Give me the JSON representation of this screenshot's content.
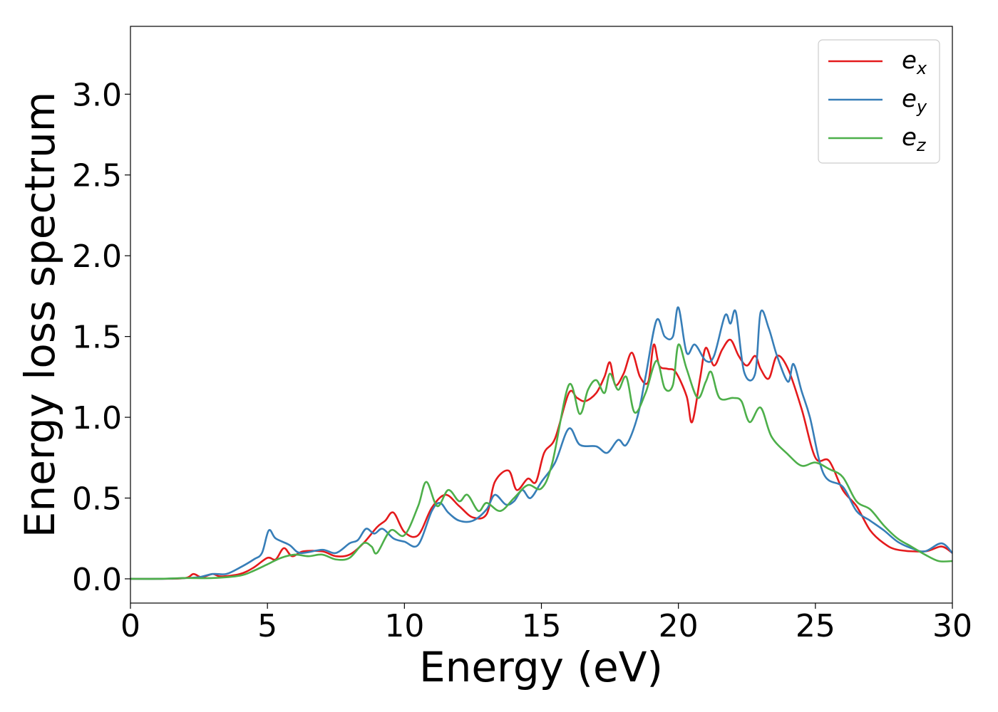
{
  "chart_data": {
    "type": "line",
    "title": "",
    "xlabel": "Energy (eV)",
    "ylabel": "Energy loss spectrum",
    "xlim": [
      0,
      30
    ],
    "ylim": [
      -0.15,
      3.42
    ],
    "xticks": [
      0,
      5,
      10,
      15,
      20,
      25,
      30
    ],
    "xtick_labels": [
      "0",
      "5",
      "10",
      "15",
      "20",
      "25",
      "30"
    ],
    "yticks": [
      0.0,
      0.5,
      1.0,
      1.5,
      2.0,
      2.5,
      3.0
    ],
    "ytick_labels": [
      "0.0",
      "0.5",
      "1.0",
      "1.5",
      "2.0",
      "2.5",
      "3.0"
    ],
    "grid": false,
    "legend_position": "top-right",
    "series": [
      {
        "name": "e_x",
        "legend_base": "e",
        "legend_sub": "x",
        "color": "#e41a1c",
        "points": [
          [
            0,
            0
          ],
          [
            1,
            0
          ],
          [
            2,
            0.005
          ],
          [
            2.3,
            0.03
          ],
          [
            2.6,
            0.01
          ],
          [
            3,
            0.03
          ],
          [
            3.3,
            0.015
          ],
          [
            4,
            0.03
          ],
          [
            4.5,
            0.07
          ],
          [
            5,
            0.13
          ],
          [
            5.3,
            0.12
          ],
          [
            5.6,
            0.19
          ],
          [
            5.9,
            0.14
          ],
          [
            6.3,
            0.17
          ],
          [
            7,
            0.17
          ],
          [
            7.5,
            0.14
          ],
          [
            8,
            0.15
          ],
          [
            8.5,
            0.22
          ],
          [
            9,
            0.32
          ],
          [
            9.3,
            0.36
          ],
          [
            9.6,
            0.41
          ],
          [
            10,
            0.29
          ],
          [
            10.5,
            0.27
          ],
          [
            11,
            0.44
          ],
          [
            11.5,
            0.52
          ],
          [
            12,
            0.45
          ],
          [
            12.5,
            0.38
          ],
          [
            13,
            0.4
          ],
          [
            13.3,
            0.6
          ],
          [
            13.8,
            0.67
          ],
          [
            14.1,
            0.55
          ],
          [
            14.5,
            0.62
          ],
          [
            14.8,
            0.6
          ],
          [
            15.1,
            0.78
          ],
          [
            15.5,
            0.87
          ],
          [
            16,
            1.15
          ],
          [
            16.3,
            1.12
          ],
          [
            16.6,
            1.1
          ],
          [
            17,
            1.15
          ],
          [
            17.3,
            1.25
          ],
          [
            17.5,
            1.34
          ],
          [
            17.7,
            1.2
          ],
          [
            18,
            1.27
          ],
          [
            18.3,
            1.4
          ],
          [
            18.6,
            1.25
          ],
          [
            18.9,
            1.22
          ],
          [
            19.1,
            1.45
          ],
          [
            19.3,
            1.32
          ],
          [
            19.6,
            1.3
          ],
          [
            19.9,
            1.28
          ],
          [
            20.3,
            1.13
          ],
          [
            20.5,
            0.97
          ],
          [
            20.8,
            1.25
          ],
          [
            21,
            1.43
          ],
          [
            21.3,
            1.32
          ],
          [
            21.6,
            1.42
          ],
          [
            21.9,
            1.48
          ],
          [
            22.2,
            1.38
          ],
          [
            22.5,
            1.32
          ],
          [
            22.8,
            1.38
          ],
          [
            23,
            1.3
          ],
          [
            23.3,
            1.24
          ],
          [
            23.6,
            1.38
          ],
          [
            24,
            1.3
          ],
          [
            24.5,
            1.05
          ],
          [
            25,
            0.75
          ],
          [
            25.5,
            0.73
          ],
          [
            26,
            0.55
          ],
          [
            26.5,
            0.45
          ],
          [
            27,
            0.3
          ],
          [
            27.5,
            0.22
          ],
          [
            28,
            0.18
          ],
          [
            29,
            0.17
          ],
          [
            29.6,
            0.2
          ],
          [
            30,
            0.16
          ]
        ]
      },
      {
        "name": "e_y",
        "legend_base": "e",
        "legend_sub": "y",
        "color": "#377eb8",
        "points": [
          [
            0,
            0
          ],
          [
            1,
            0
          ],
          [
            2,
            0.005
          ],
          [
            2.5,
            0.01
          ],
          [
            3,
            0.03
          ],
          [
            3.5,
            0.03
          ],
          [
            4,
            0.07
          ],
          [
            4.5,
            0.12
          ],
          [
            4.8,
            0.16
          ],
          [
            5.05,
            0.3
          ],
          [
            5.3,
            0.25
          ],
          [
            5.8,
            0.21
          ],
          [
            6.2,
            0.16
          ],
          [
            7,
            0.18
          ],
          [
            7.5,
            0.16
          ],
          [
            8,
            0.22
          ],
          [
            8.3,
            0.24
          ],
          [
            8.6,
            0.31
          ],
          [
            8.9,
            0.28
          ],
          [
            9.2,
            0.31
          ],
          [
            9.6,
            0.25
          ],
          [
            10,
            0.23
          ],
          [
            10.5,
            0.21
          ],
          [
            11,
            0.42
          ],
          [
            11.3,
            0.47
          ],
          [
            11.6,
            0.41
          ],
          [
            12,
            0.36
          ],
          [
            12.5,
            0.36
          ],
          [
            13,
            0.43
          ],
          [
            13.3,
            0.52
          ],
          [
            13.7,
            0.46
          ],
          [
            14,
            0.48
          ],
          [
            14.3,
            0.55
          ],
          [
            14.6,
            0.5
          ],
          [
            15,
            0.6
          ],
          [
            15.5,
            0.72
          ],
          [
            16,
            0.93
          ],
          [
            16.4,
            0.83
          ],
          [
            17,
            0.82
          ],
          [
            17.4,
            0.78
          ],
          [
            17.8,
            0.86
          ],
          [
            18.1,
            0.83
          ],
          [
            18.5,
            1
          ],
          [
            18.8,
            1.25
          ],
          [
            19.2,
            1.6
          ],
          [
            19.5,
            1.5
          ],
          [
            19.8,
            1.5
          ],
          [
            20,
            1.68
          ],
          [
            20.3,
            1.4
          ],
          [
            20.6,
            1.45
          ],
          [
            21,
            1.35
          ],
          [
            21.3,
            1.38
          ],
          [
            21.7,
            1.63
          ],
          [
            21.9,
            1.58
          ],
          [
            22.1,
            1.65
          ],
          [
            22.4,
            1.28
          ],
          [
            22.8,
            1.27
          ],
          [
            23,
            1.65
          ],
          [
            23.3,
            1.55
          ],
          [
            23.6,
            1.38
          ],
          [
            24,
            1.22
          ],
          [
            24.2,
            1.33
          ],
          [
            24.5,
            1.16
          ],
          [
            24.8,
            1
          ],
          [
            25.3,
            0.65
          ],
          [
            26,
            0.57
          ],
          [
            26.5,
            0.42
          ],
          [
            27,
            0.36
          ],
          [
            27.5,
            0.3
          ],
          [
            28,
            0.23
          ],
          [
            28.5,
            0.19
          ],
          [
            29,
            0.17
          ],
          [
            29.6,
            0.22
          ],
          [
            30,
            0.16
          ]
        ]
      },
      {
        "name": "e_z",
        "legend_base": "e",
        "legend_sub": "z",
        "color": "#4daf4a",
        "points": [
          [
            0,
            0
          ],
          [
            1,
            0
          ],
          [
            2,
            0.005
          ],
          [
            3,
            0.005
          ],
          [
            4,
            0.02
          ],
          [
            4.5,
            0.05
          ],
          [
            5,
            0.09
          ],
          [
            5.5,
            0.13
          ],
          [
            6,
            0.15
          ],
          [
            6.5,
            0.14
          ],
          [
            7,
            0.15
          ],
          [
            7.5,
            0.12
          ],
          [
            8,
            0.13
          ],
          [
            8.5,
            0.22
          ],
          [
            8.8,
            0.2
          ],
          [
            9,
            0.16
          ],
          [
            9.5,
            0.3
          ],
          [
            10,
            0.27
          ],
          [
            10.5,
            0.45
          ],
          [
            10.8,
            0.6
          ],
          [
            11.2,
            0.45
          ],
          [
            11.6,
            0.55
          ],
          [
            12,
            0.48
          ],
          [
            12.3,
            0.52
          ],
          [
            12.7,
            0.42
          ],
          [
            13,
            0.47
          ],
          [
            13.5,
            0.42
          ],
          [
            14,
            0.5
          ],
          [
            14.5,
            0.58
          ],
          [
            15,
            0.56
          ],
          [
            15.4,
            0.72
          ],
          [
            16,
            1.2
          ],
          [
            16.4,
            1.02
          ],
          [
            16.7,
            1.17
          ],
          [
            17,
            1.23
          ],
          [
            17.3,
            1.15
          ],
          [
            17.5,
            1.27
          ],
          [
            17.8,
            1.17
          ],
          [
            18.1,
            1.25
          ],
          [
            18.4,
            1.03
          ],
          [
            18.8,
            1.15
          ],
          [
            19.2,
            1.35
          ],
          [
            19.5,
            1.18
          ],
          [
            19.8,
            1.2
          ],
          [
            20,
            1.45
          ],
          [
            20.3,
            1.3
          ],
          [
            20.7,
            1.12
          ],
          [
            21,
            1.22
          ],
          [
            21.2,
            1.28
          ],
          [
            21.5,
            1.12
          ],
          [
            22,
            1.12
          ],
          [
            22.3,
            1.1
          ],
          [
            22.6,
            0.97
          ],
          [
            23,
            1.06
          ],
          [
            23.4,
            0.88
          ],
          [
            24,
            0.77
          ],
          [
            24.5,
            0.7
          ],
          [
            25,
            0.72
          ],
          [
            25.5,
            0.68
          ],
          [
            26,
            0.63
          ],
          [
            26.5,
            0.48
          ],
          [
            27,
            0.43
          ],
          [
            27.5,
            0.33
          ],
          [
            28,
            0.25
          ],
          [
            28.5,
            0.2
          ],
          [
            29,
            0.15
          ],
          [
            29.5,
            0.11
          ],
          [
            30,
            0.11
          ]
        ]
      }
    ]
  }
}
